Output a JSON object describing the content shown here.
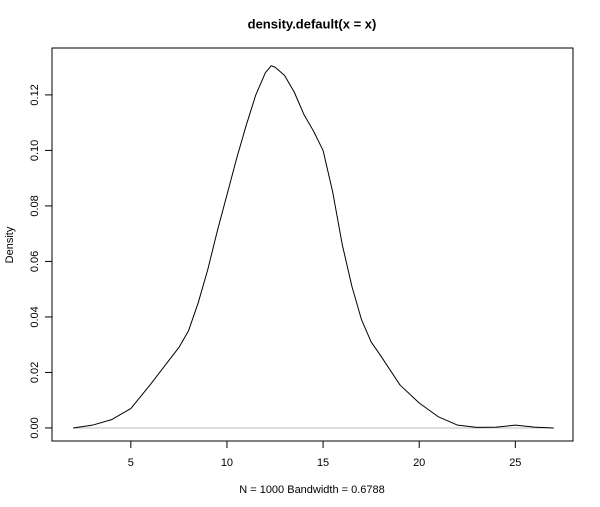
{
  "chart_data": {
    "type": "line",
    "title": "density.default(x = x)",
    "x_label": "N = 1000   Bandwidth = 0.6788",
    "y_label": "Density",
    "x": [
      2,
      3,
      4,
      4.5,
      5,
      6,
      7,
      7.5,
      8,
      8.5,
      9,
      9.5,
      10,
      10.5,
      11,
      11.5,
      12,
      12.3,
      12.5,
      13,
      13.5,
      14,
      14.5,
      15,
      15.5,
      16,
      16.5,
      17,
      17.5,
      18,
      19,
      20,
      21,
      22,
      23,
      24,
      25,
      26,
      27
    ],
    "values": [
      0.0,
      0.001,
      0.003,
      0.005,
      0.007,
      0.0155,
      0.0245,
      0.029,
      0.035,
      0.045,
      0.057,
      0.071,
      0.084,
      0.097,
      0.109,
      0.12,
      0.128,
      0.1305,
      0.13,
      0.127,
      0.121,
      0.113,
      0.107,
      0.1,
      0.085,
      0.066,
      0.051,
      0.039,
      0.031,
      0.026,
      0.0155,
      0.009,
      0.004,
      0.001,
      0.0002,
      0.0003,
      0.001,
      0.0003,
      0.0
    ],
    "color": "#000000",
    "xlim": [
      0.9,
      28.0
    ],
    "xticks": [
      5,
      10,
      15,
      20,
      25
    ],
    "ylim": [
      -0.0047,
      0.1369
    ],
    "yticks": [
      {
        "value": 0,
        "label": "0.00"
      },
      0.02,
      0.04,
      0.06,
      0.08,
      {
        "value": 0.1,
        "label": "0.10"
      },
      0.12
    ],
    "zero_line_color": "#bebebe"
  }
}
